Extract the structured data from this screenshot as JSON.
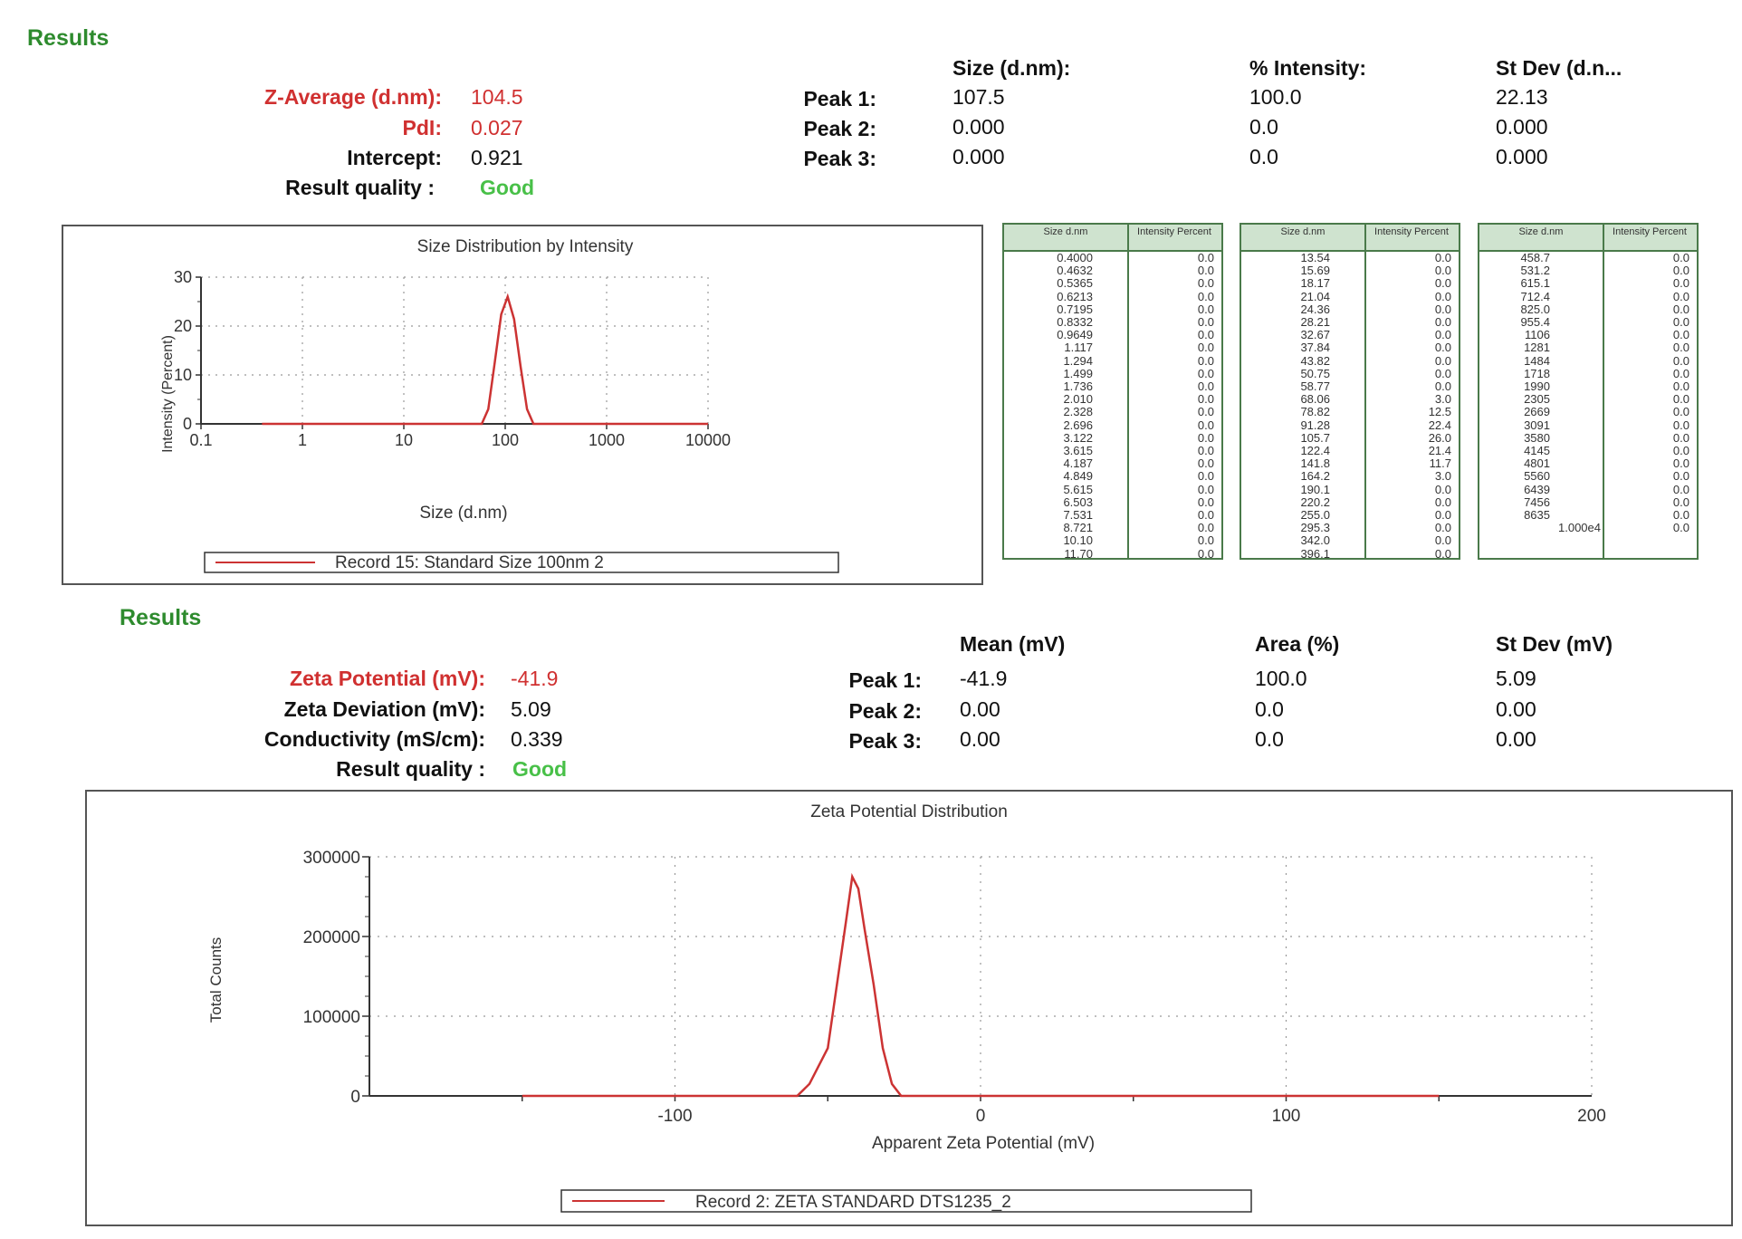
{
  "size_results": {
    "heading": "Results",
    "z_average_label": "Z-Average (d.nm):",
    "z_average_value": "104.5",
    "pdi_label": "PdI:",
    "pdi_value": "0.027",
    "intercept_label": "Intercept:",
    "intercept_value": "0.921",
    "quality_label": "Result quality :",
    "quality_value": "Good",
    "col_headers": [
      "Size (d.nm):",
      "% Intensity:",
      "St Dev (d.n..."
    ],
    "peaks": [
      {
        "label": "Peak 1:",
        "c1": "107.5",
        "c2": "100.0",
        "c3": "22.13"
      },
      {
        "label": "Peak 2:",
        "c1": "0.000",
        "c2": "0.0",
        "c3": "0.000"
      },
      {
        "label": "Peak 3:",
        "c1": "0.000",
        "c2": "0.0",
        "c3": "0.000"
      }
    ]
  },
  "zeta_results": {
    "heading": "Results",
    "zeta_potential_label": "Zeta Potential (mV):",
    "zeta_potential_value": "-41.9",
    "zeta_deviation_label": "Zeta Deviation (mV):",
    "zeta_deviation_value": "5.09",
    "conductivity_label": "Conductivity (mS/cm):",
    "conductivity_value": "0.339",
    "quality_label": "Result quality :",
    "quality_value": "Good",
    "col_headers": [
      "Mean (mV)",
      "Area (%)",
      "St Dev (mV)"
    ],
    "peaks": [
      {
        "label": "Peak 1:",
        "c1": "-41.9",
        "c2": "100.0",
        "c3": "5.09"
      },
      {
        "label": "Peak 2:",
        "c1": "0.00",
        "c2": "0.0",
        "c3": "0.00"
      },
      {
        "label": "Peak 3:",
        "c1": "0.00",
        "c2": "0.0",
        "c3": "0.00"
      }
    ]
  },
  "size_table": {
    "header_size": "Size d.nm",
    "header_intensity": "Intensity Percent",
    "columns": [
      {
        "sizes": [
          "0.4000",
          "0.4632",
          "0.5365",
          "0.6213",
          "0.7195",
          "0.8332",
          "0.9649",
          "1.117",
          "1.294",
          "1.499",
          "1.736",
          "2.010",
          "2.328",
          "2.696",
          "3.122",
          "3.615",
          "4.187",
          "4.849",
          "5.615",
          "6.503",
          "7.531",
          "8.721",
          "10.10",
          "11.70"
        ],
        "intensities": [
          "0.0",
          "0.0",
          "0.0",
          "0.0",
          "0.0",
          "0.0",
          "0.0",
          "0.0",
          "0.0",
          "0.0",
          "0.0",
          "0.0",
          "0.0",
          "0.0",
          "0.0",
          "0.0",
          "0.0",
          "0.0",
          "0.0",
          "0.0",
          "0.0",
          "0.0",
          "0.0",
          "0.0"
        ]
      },
      {
        "sizes": [
          "13.54",
          "15.69",
          "18.17",
          "21.04",
          "24.36",
          "28.21",
          "32.67",
          "37.84",
          "43.82",
          "50.75",
          "58.77",
          "68.06",
          "78.82",
          "91.28",
          "105.7",
          "122.4",
          "141.8",
          "164.2",
          "190.1",
          "220.2",
          "255.0",
          "295.3",
          "342.0",
          "396.1"
        ],
        "intensities": [
          "0.0",
          "0.0",
          "0.0",
          "0.0",
          "0.0",
          "0.0",
          "0.0",
          "0.0",
          "0.0",
          "0.0",
          "0.0",
          "3.0",
          "12.5",
          "22.4",
          "26.0",
          "21.4",
          "11.7",
          "3.0",
          "0.0",
          "0.0",
          "0.0",
          "0.0",
          "0.0",
          "0.0"
        ]
      },
      {
        "sizes": [
          "458.7",
          "531.2",
          "615.1",
          "712.4",
          "825.0",
          "955.4",
          "1106",
          "1281",
          "1484",
          "1718",
          "1990",
          "2305",
          "2669",
          "3091",
          "3580",
          "4145",
          "4801",
          "5560",
          "6439",
          "7456",
          "8635",
          "1.000e4"
        ],
        "intensities": [
          "0.0",
          "0.0",
          "0.0",
          "0.0",
          "0.0",
          "0.0",
          "0.0",
          "0.0",
          "0.0",
          "0.0",
          "0.0",
          "0.0",
          "0.0",
          "0.0",
          "0.0",
          "0.0",
          "0.0",
          "0.0",
          "0.0",
          "0.0",
          "0.0",
          "0.0"
        ]
      }
    ]
  },
  "chart_data": [
    {
      "type": "line",
      "title": "Size Distribution by Intensity",
      "xlabel": "Size (d.nm)",
      "ylabel": "Intensity (Percent)",
      "xscale": "log",
      "xlim": [
        0.1,
        10000
      ],
      "ylim": [
        0,
        30
      ],
      "xticks": [
        "0.1",
        "1",
        "10",
        "100",
        "1000",
        "10000"
      ],
      "yticks": [
        "0",
        "10",
        "20",
        "30"
      ],
      "grid": true,
      "legend": "Record 15: Standard Size 100nm 2",
      "color": "#cc3333",
      "series": [
        {
          "name": "Record 15: Standard Size 100nm 2",
          "x": [
            0.4,
            50.75,
            58.77,
            68.06,
            78.82,
            91.28,
            105.7,
            122.4,
            141.8,
            164.2,
            190.1,
            10000
          ],
          "y": [
            0,
            0,
            0,
            3.0,
            12.5,
            22.4,
            26.0,
            21.4,
            11.7,
            3.0,
            0,
            0
          ]
        }
      ]
    },
    {
      "type": "line",
      "title": "Zeta Potential Distribution",
      "xlabel": "Apparent Zeta Potential (mV)",
      "ylabel": "Total Counts",
      "xlim": [
        -200,
        200
      ],
      "ylim": [
        0,
        300000
      ],
      "xticks": [
        "-100",
        "0",
        "100",
        "200"
      ],
      "yticks": [
        "0",
        "100000",
        "200000",
        "300000"
      ],
      "grid": true,
      "legend": "Record 2: ZETA STANDARD DTS1235_2",
      "color": "#cc3333",
      "series": [
        {
          "name": "Record 2: ZETA STANDARD DTS1235_2",
          "x": [
            -150,
            -60,
            -56,
            -50,
            -47,
            -44,
            -42,
            -40,
            -38,
            -35,
            -32,
            -29,
            -26,
            150
          ],
          "y": [
            0,
            0,
            15000,
            60000,
            140000,
            220000,
            275000,
            260000,
            210000,
            140000,
            60000,
            15000,
            0,
            0
          ]
        }
      ]
    }
  ]
}
